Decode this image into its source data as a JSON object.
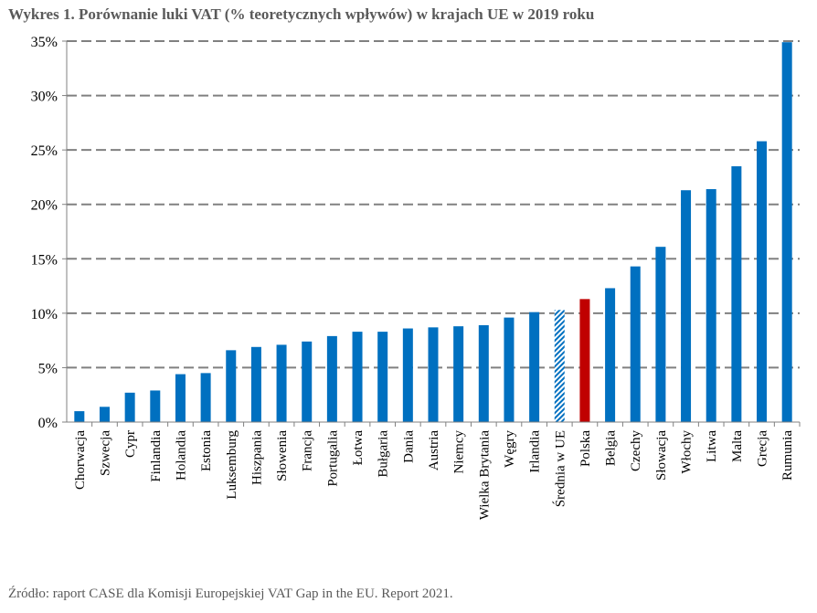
{
  "title": "Wykres 1. Porównanie luki VAT (% teoretycznych wpływów) w krajach UE w 2019 roku",
  "source": "Źródło: raport CASE dla Komisji Europejskiej VAT Gap in the EU. Report 2021.",
  "colors": {
    "bar": "#0070C0",
    "highlight": "#C00000",
    "average_hatch": "#0070C0",
    "grid": "#808080",
    "axis": "#808080"
  },
  "chart_data": {
    "type": "bar",
    "title": "Wykres 1. Porównanie luki VAT (% teoretycznych wpływów) w krajach UE w 2019 roku",
    "xlabel": "",
    "ylabel": "",
    "ylim": [
      0,
      35
    ],
    "yticks": [
      0,
      5,
      10,
      15,
      20,
      25,
      30,
      35
    ],
    "ytick_labels": [
      "0%",
      "5%",
      "10%",
      "15%",
      "20%",
      "25%",
      "30%",
      "35%"
    ],
    "grid": true,
    "legend": "none",
    "categories": [
      "Chorwacja",
      "Szwecja",
      "Cypr",
      "Finlandia",
      "Holandia",
      "Estonia",
      "Luksemburg",
      "Hiszpania",
      "Słowenia",
      "Francja",
      "Portugalia",
      "Łotwa",
      "Bułgaria",
      "Dania",
      "Austria",
      "Niemcy",
      "Wielka Brytania",
      "Węgry",
      "Irlandia",
      "Średnia w UE",
      "Polska",
      "Belgia",
      "Czechy",
      "Słowacja",
      "Włochy",
      "Litwa",
      "Malta",
      "Grecja",
      "Rumunia"
    ],
    "values": [
      1.0,
      1.4,
      2.7,
      2.9,
      4.4,
      4.5,
      6.6,
      6.9,
      7.1,
      7.4,
      7.9,
      8.3,
      8.3,
      8.6,
      8.7,
      8.8,
      8.9,
      9.6,
      10.1,
      10.3,
      11.3,
      12.3,
      14.3,
      16.1,
      21.3,
      21.4,
      23.5,
      25.8,
      34.9
    ],
    "highlight": "Polska",
    "average": "Średnia w UE"
  }
}
